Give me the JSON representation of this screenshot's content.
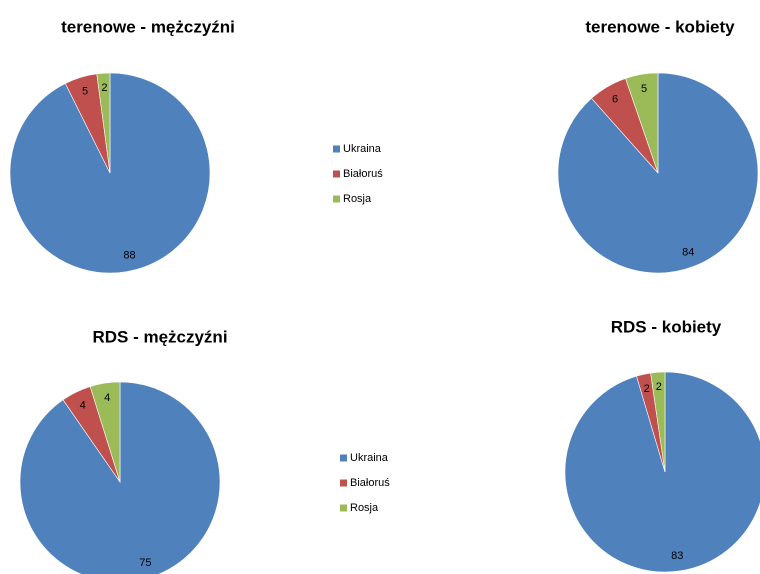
{
  "chart_data": [
    {
      "type": "pie",
      "title": "terenowe - mężczyźni",
      "categories": [
        "Ukraina",
        "Białoruś",
        "Rosja"
      ],
      "values": [
        88,
        5,
        2
      ],
      "colors": [
        "#4f81bd",
        "#c0504d",
        "#9bbb59"
      ],
      "legend": "right"
    },
    {
      "type": "pie",
      "title": "terenowe - kobiety",
      "categories": [
        "Ukraina",
        "Białoruś",
        "Rosja"
      ],
      "values": [
        84,
        6,
        5
      ],
      "colors": [
        "#4f81bd",
        "#c0504d",
        "#9bbb59"
      ]
    },
    {
      "type": "pie",
      "title": "RDS - mężczyźni",
      "categories": [
        "Ukraina",
        "Białoruś",
        "Rosja"
      ],
      "values": [
        75,
        4,
        4
      ],
      "colors": [
        "#4f81bd",
        "#c0504d",
        "#9bbb59"
      ],
      "legend": "right"
    },
    {
      "type": "pie",
      "title": "RDS - kobiety",
      "categories": [
        "Ukraina",
        "Białoruś",
        "Rosja"
      ],
      "values": [
        83,
        2,
        2
      ],
      "colors": [
        "#4f81bd",
        "#c0504d",
        "#9bbb59"
      ]
    }
  ]
}
